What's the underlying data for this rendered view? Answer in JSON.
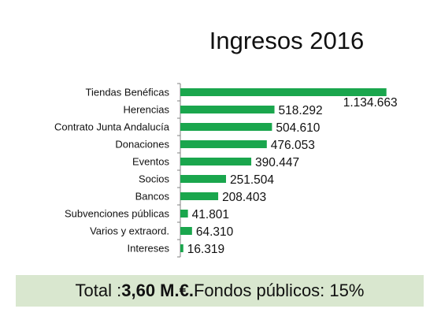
{
  "chart_data": {
    "type": "bar",
    "orientation": "horizontal",
    "title": "Ingresos 2016",
    "categories": [
      "Tiendas Benéficas",
      "Herencias",
      "Contrato Junta Andalucía",
      "Donaciones",
      "Eventos",
      "Socios",
      "Bancos",
      "Subvenciones públicas",
      "Varios y extraord.",
      "Intereses"
    ],
    "values": [
      1134663,
      518292,
      504610,
      476053,
      390447,
      251504,
      208403,
      41801,
      64310,
      16319
    ],
    "data_labels": [
      "1.134.663",
      "518.292",
      "504.610",
      "476.053",
      "390.447",
      "251.504",
      "208.403",
      "41.801",
      "64.310",
      "16.319"
    ],
    "xlim": [
      0,
      1240000
    ],
    "bar_color": "#1aa64d",
    "grid": false,
    "legend": "none"
  },
  "summary": {
    "prefix": "Total : ",
    "total_value": "3,60 M.€.",
    "suffix": " Fondos públicos: 15%",
    "background": "#d9e7cf"
  }
}
